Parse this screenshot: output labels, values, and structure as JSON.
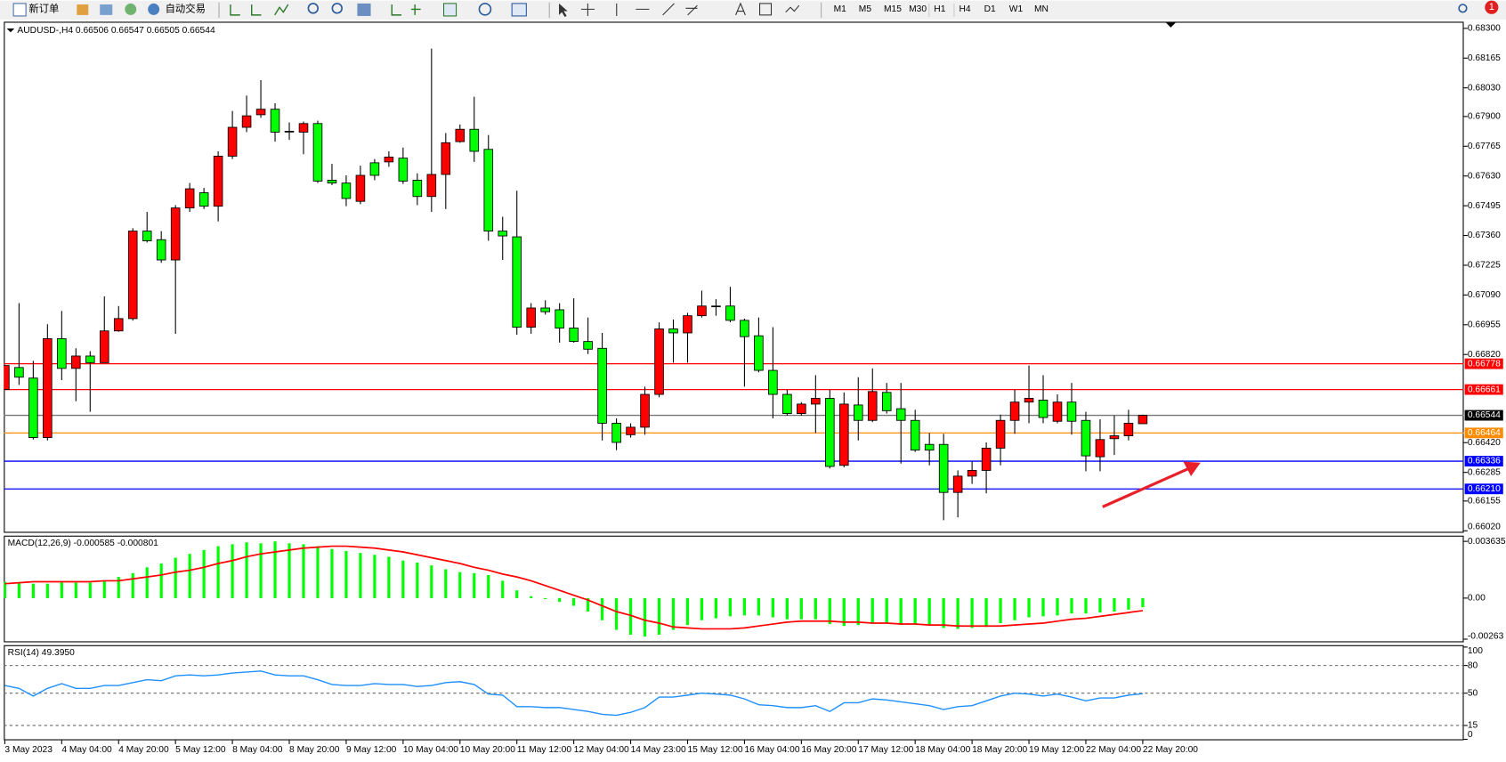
{
  "toolbar": {
    "new_order": "新订单",
    "auto_trading": "自动交易",
    "timeframes": [
      "M1",
      "M5",
      "M15",
      "M30",
      "H1",
      "H4",
      "D1",
      "W1",
      "MN"
    ],
    "badge": "1"
  },
  "chart_data": [
    {
      "type": "candlestick",
      "title": "AUDUSD-,H4  0.66506 0.66547 0.66505 0.66544",
      "categories": [
        "3 May 2023",
        null,
        null,
        null,
        "4 May 04:00",
        null,
        null,
        null,
        "4 May 20:00",
        null,
        null,
        null,
        "5 May 12:00",
        null,
        null,
        null,
        "8 May 04:00",
        null,
        null,
        null,
        "8 May 20:00",
        null,
        null,
        null,
        "9 May 12:00",
        null,
        null,
        null,
        "10 May 04:00",
        null,
        null,
        null,
        "10 May 20:00",
        null,
        null,
        null,
        "11 May 12:00",
        null,
        null,
        null,
        "12 May 04:00",
        null,
        null,
        null,
        "14 May 23:00",
        null,
        null,
        null,
        "15 May 12:00",
        null,
        null,
        null,
        "16 May 04:00",
        null,
        null,
        null,
        "16 May 20:00",
        null,
        null,
        null,
        "17 May 12:00",
        null,
        null,
        null,
        "18 May 04:00",
        null,
        null,
        null,
        "18 May 20:00",
        null,
        null,
        null,
        "19 May 12:00",
        null,
        null,
        null,
        "22 May 04:00",
        null,
        null,
        null,
        "22 May 20:00"
      ],
      "open": [
        0.66661,
        0.66761,
        0.66713,
        0.66443,
        0.66892,
        0.66757,
        0.66813,
        0.66783,
        0.66927,
        0.66983,
        0.6738,
        0.67341,
        0.67249,
        0.67485,
        0.67554,
        0.67493,
        0.6772,
        0.67851,
        0.67908,
        0.67933,
        0.67833,
        0.67829,
        0.67868,
        0.67611,
        0.67598,
        0.67515,
        0.6769,
        0.67694,
        0.67711,
        0.67611,
        0.67537,
        0.67637,
        0.67786,
        0.67842,
        0.67751,
        0.6738,
        0.67354,
        0.66944,
        0.67031,
        0.67023,
        0.6694,
        0.66879,
        0.66848,
        0.66508,
        0.66456,
        0.6649,
        0.66639,
        0.66936,
        0.66918,
        0.66996,
        0.6704,
        0.6704,
        0.66975,
        0.66905,
        0.66748,
        0.66639,
        0.66552,
        0.66595,
        0.66621,
        0.66317,
        0.66591,
        0.66521,
        0.66648,
        0.66574,
        0.66521,
        0.66412,
        0.66412,
        0.66194,
        0.66268,
        0.66294,
        0.66395,
        0.66521,
        0.66604,
        0.66613,
        0.66517,
        0.66604,
        0.66521,
        0.66356,
        0.66438,
        0.66451,
        0.66506
      ],
      "high": [
        0.6677,
        0.67053,
        0.66791,
        0.66957,
        0.67018,
        0.66848,
        0.66835,
        0.67084,
        0.6704,
        0.67393,
        0.67467,
        0.6738,
        0.67498,
        0.67598,
        0.67576,
        0.67742,
        0.67925,
        0.67995,
        0.68065,
        0.6796,
        0.67873,
        0.67877,
        0.67881,
        0.67685,
        0.67633,
        0.67677,
        0.67707,
        0.67742,
        0.67759,
        0.67642,
        0.68208,
        0.67825,
        0.67864,
        0.6799,
        0.67816,
        0.67445,
        0.67563,
        0.67053,
        0.67066,
        0.67053,
        0.67075,
        0.66988,
        0.66918,
        0.6653,
        0.66508,
        0.66674,
        0.66966,
        0.66979,
        0.67009,
        0.6711,
        0.67071,
        0.67127,
        0.66983,
        0.66988,
        0.66944,
        0.66661,
        0.66604,
        0.66726,
        0.66661,
        0.66648,
        0.66717,
        0.66757,
        0.66691,
        0.66691,
        0.66569,
        0.66464,
        0.6646,
        0.66294,
        0.66334,
        0.66421,
        0.66547,
        0.66661,
        0.6677,
        0.66726,
        0.66639,
        0.66691,
        0.6656,
        0.66526,
        0.66543,
        0.66569,
        0.66547
      ],
      "low": [
        0.66661,
        0.66682,
        0.66434,
        0.6643,
        0.66704,
        0.66608,
        0.6656,
        0.66783,
        0.66923,
        0.66974,
        0.67328,
        0.67236,
        0.66914,
        0.67467,
        0.6748,
        0.67424,
        0.67707,
        0.67829,
        0.67894,
        0.67786,
        0.67794,
        0.67729,
        0.67598,
        0.67589,
        0.67493,
        0.67502,
        0.67611,
        0.67672,
        0.67594,
        0.67498,
        0.67467,
        0.6748,
        0.67781,
        0.67694,
        0.67336,
        0.67249,
        0.6691,
        0.66914,
        0.67001,
        0.66874,
        0.66874,
        0.66822,
        0.6643,
        0.66386,
        0.66443,
        0.66456,
        0.66626,
        0.66783,
        0.66783,
        0.66988,
        0.66996,
        0.66966,
        0.66674,
        0.66739,
        0.6653,
        0.66543,
        0.66543,
        0.66464,
        0.66303,
        0.66308,
        0.6643,
        0.66513,
        0.66552,
        0.66325,
        0.66378,
        0.66317,
        0.66068,
        0.66081,
        0.66233,
        0.6619,
        0.66317,
        0.6646,
        0.66508,
        0.66508,
        0.66508,
        0.66456,
        0.6629,
        0.6629,
        0.66364,
        0.6643,
        0.66505
      ],
      "close": [
        0.6677,
        0.66717,
        0.66443,
        0.66892,
        0.66757,
        0.66813,
        0.66783,
        0.66927,
        0.66983,
        0.6738,
        0.67336,
        0.67249,
        0.67485,
        0.67572,
        0.67493,
        0.6772,
        0.67851,
        0.67903,
        0.67933,
        0.67829,
        0.67831,
        0.67868,
        0.67607,
        0.67598,
        0.67528,
        0.67633,
        0.67633,
        0.67716,
        0.67607,
        0.67537,
        0.67637,
        0.67781,
        0.67842,
        0.67742,
        0.6738,
        0.67358,
        0.66944,
        0.67031,
        0.67014,
        0.6694,
        0.66879,
        0.66844,
        0.66508,
        0.66421,
        0.6649,
        0.66639,
        0.66936,
        0.66918,
        0.66996,
        0.6704,
        0.67038,
        0.66975,
        0.66901,
        0.66748,
        0.66639,
        0.66552,
        0.66595,
        0.66621,
        0.66312,
        0.66595,
        0.66521,
        0.66652,
        0.66565,
        0.66521,
        0.66386,
        0.66386,
        0.66194,
        0.66268,
        0.66294,
        0.66395,
        0.66521,
        0.66604,
        0.66621,
        0.66534,
        0.66604,
        0.66517,
        0.6636,
        0.66434,
        0.66451,
        0.66508,
        0.66544
      ],
      "up_color": "#ff0000",
      "down_color": "#00ff00",
      "ylim": [
        0.66011,
        0.6833
      ],
      "yticks": [
        {
          "value": 0.683,
          "label": "0.68300"
        },
        0.68165,
        {
          "value": 0.6803,
          "label": "0.68030"
        },
        {
          "value": 0.679,
          "label": "0.67900"
        },
        0.67765,
        {
          "value": 0.6763,
          "label": "0.67630"
        },
        0.67495,
        {
          "value": 0.6736,
          "label": "0.67360"
        },
        0.67225,
        {
          "value": 0.6709,
          "label": "0.67090"
        },
        0.66955,
        {
          "value": 0.6682,
          "label": "0.66820"
        },
        {
          "value": 0.6642,
          "label": "0.66420"
        },
        0.66285,
        0.66155,
        {
          "value": 0.6602,
          "label": "0.66020"
        }
      ],
      "hlines": [
        {
          "value": 0.66778,
          "label": "0.66778",
          "color": "#ff0000"
        },
        {
          "value": 0.66661,
          "label": "0.66661",
          "color": "#ff0000"
        },
        {
          "value": 0.66544,
          "label": "0.66544",
          "color": "#000000"
        },
        {
          "value": 0.66464,
          "label": "0.66464",
          "color": "#ff8c00"
        },
        {
          "value": 0.66336,
          "label": "0.66336",
          "color": "#0000ff"
        },
        {
          "value": 0.6621,
          "label": "0.66210",
          "color": "#0000ff"
        }
      ]
    },
    {
      "type": "macd",
      "title": "MACD(12,26,9) -0.000585 -0.000801",
      "series": [
        {
          "style": "bar",
          "color": "#00ff00",
          "values": [
            0.001047,
            0.000986,
            0.000924,
            0.000924,
            0.001047,
            0.000986,
            0.000986,
            0.001109,
            0.001355,
            0.001602,
            0.001971,
            0.002218,
            0.002587,
            0.002834,
            0.00308,
            0.003326,
            0.00345,
            0.003573,
            0.003511,
            0.003634,
            0.003511,
            0.00345,
            0.003326,
            0.003142,
            0.003018,
            0.002895,
            0.002772,
            0.002649,
            0.002402,
            0.002279,
            0.002094,
            0.001848,
            0.001663,
            0.001602,
            0.001478,
            0.001109,
            0.000493,
            0.000123,
            -6.2e-05,
            -0.000246,
            -0.000493,
            -0.000862,
            -0.001417,
            -0.002033,
            -0.002341,
            -0.002464,
            -0.002341,
            -0.002033,
            -0.001725,
            -0.001417,
            -0.001294,
            -0.00117,
            -0.001109,
            -0.001109,
            -0.001232,
            -0.001355,
            -0.001355,
            -0.001355,
            -0.001663,
            -0.001786,
            -0.001725,
            -0.001602,
            -0.001602,
            -0.001725,
            -0.001725,
            -0.001725,
            -0.00191,
            -0.001971,
            -0.00191,
            -0.001848,
            -0.001602,
            -0.001417,
            -0.001232,
            -0.00117,
            -0.001109,
            -0.000986,
            -0.000986,
            -0.000924,
            -0.000862,
            -0.000739,
            -0.000585
          ]
        },
        {
          "style": "line",
          "color": "#ff0000",
          "values": [
            0.000924,
            0.000986,
            0.001047,
            0.001047,
            0.001047,
            0.001047,
            0.001047,
            0.001109,
            0.001109,
            0.001232,
            0.001355,
            0.001478,
            0.001663,
            0.001786,
            0.001971,
            0.002218,
            0.002402,
            0.002649,
            0.002834,
            0.002957,
            0.00308,
            0.003203,
            0.003265,
            0.003326,
            0.003326,
            0.003265,
            0.003203,
            0.00308,
            0.002957,
            0.002772,
            0.002587,
            0.002402,
            0.002218,
            0.001971,
            0.001786,
            0.00154,
            0.001355,
            0.001109,
            0.000801,
            0.000493,
            0.000185,
            -0.000123,
            -0.000493,
            -0.000862,
            -0.001109,
            -0.001417,
            -0.001602,
            -0.001848,
            -0.00191,
            -0.001971,
            -0.001971,
            -0.001971,
            -0.00191,
            -0.001786,
            -0.001663,
            -0.00154,
            -0.001478,
            -0.001478,
            -0.001478,
            -0.00154,
            -0.00154,
            -0.001602,
            -0.001602,
            -0.001663,
            -0.001663,
            -0.001725,
            -0.001725,
            -0.001786,
            -0.001786,
            -0.001786,
            -0.001786,
            -0.001725,
            -0.001663,
            -0.001602,
            -0.001478,
            -0.001355,
            -0.001294,
            -0.00117,
            -0.001047,
            -0.000924,
            -0.000801
          ]
        }
      ],
      "ylim": [
        -0.00283,
        0.004
      ],
      "yticks": [
        0.003635,
        {
          "value": 0,
          "label": "0.00"
        },
        -0.00263
      ]
    },
    {
      "type": "rsi",
      "title": "RSI(14) 49.3950",
      "color": "#1e90ff",
      "values": [
        58.3,
        55.2,
        46.9,
        55.2,
        60.4,
        55.2,
        55.2,
        58.3,
        58.3,
        61.5,
        64.6,
        63.5,
        68.8,
        69.8,
        68.8,
        69.8,
        71.9,
        72.9,
        74.0,
        69.8,
        68.8,
        68.8,
        64.6,
        59.4,
        58.3,
        58.3,
        60.4,
        59.4,
        59.4,
        57.3,
        58.3,
        61.5,
        62.5,
        59.4,
        49.0,
        47.9,
        35.4,
        35.4,
        34.4,
        34.4,
        32.3,
        30.2,
        27.1,
        26.0,
        29.2,
        34.4,
        45.8,
        45.8,
        47.9,
        50.0,
        49.0,
        47.9,
        43.8,
        37.5,
        36.5,
        34.4,
        34.4,
        36.5,
        30.2,
        39.6,
        39.6,
        43.8,
        42.7,
        40.6,
        38.5,
        36.5,
        32.3,
        35.4,
        36.5,
        41.7,
        46.9,
        50.0,
        49.0,
        46.9,
        49.0,
        45.8,
        41.7,
        44.8,
        44.8,
        47.9,
        49.395
      ],
      "ylim": [
        0,
        100
      ],
      "yticks": [
        100,
        80,
        50,
        15,
        0
      ],
      "levels": [
        80,
        50,
        15
      ]
    }
  ]
}
